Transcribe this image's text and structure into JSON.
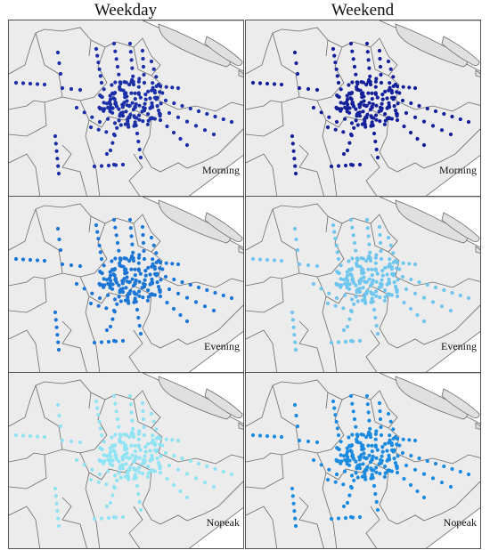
{
  "column_titles": [
    "Weekday",
    "Weekend"
  ],
  "panels": [
    {
      "day": "Weekday",
      "period": "Morning",
      "dot_color": "#1a2fa8"
    },
    {
      "day": "Weekend",
      "period": "Morning",
      "dot_color": "#13209a"
    },
    {
      "day": "Weekday",
      "period": "Evening",
      "dot_color": "#1c76d6"
    },
    {
      "day": "Weekend",
      "period": "Evening",
      "dot_color": "#6ec6ee"
    },
    {
      "day": "Weekday",
      "period": "Nopeak",
      "dot_color": "#8fe3f4"
    },
    {
      "day": "Weekend",
      "period": "Nopeak",
      "dot_color": "#1b8be0"
    }
  ],
  "colors": {
    "land": "#ececec",
    "water": "#ffffff",
    "district_border": "#6b6b6b",
    "panel_border": "#555555"
  }
}
